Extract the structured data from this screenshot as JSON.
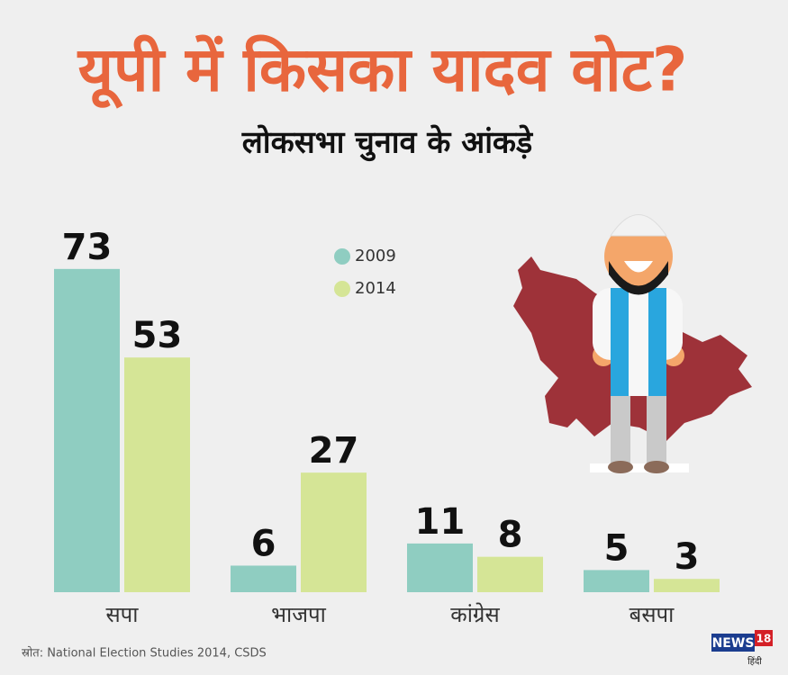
{
  "chart_data": {
    "type": "bar",
    "title": "यूपी में किसका यादव वोट?",
    "subtitle": "लोकसभा चुनाव के आंकड़े",
    "categories": [
      "सपा",
      "भाजपा",
      "कांग्रेस",
      "बसपा"
    ],
    "series": [
      {
        "name": "2009",
        "color": "#8fcdc1",
        "values": [
          73,
          6,
          11,
          5
        ]
      },
      {
        "name": "2014",
        "color": "#d5e596",
        "values": [
          53,
          27,
          8,
          3
        ]
      }
    ],
    "source": "स्रोत: National Election Studies 2014, CSDS",
    "logo": {
      "name": "NEWS",
      "number": "18",
      "language": "हिंदी"
    }
  }
}
